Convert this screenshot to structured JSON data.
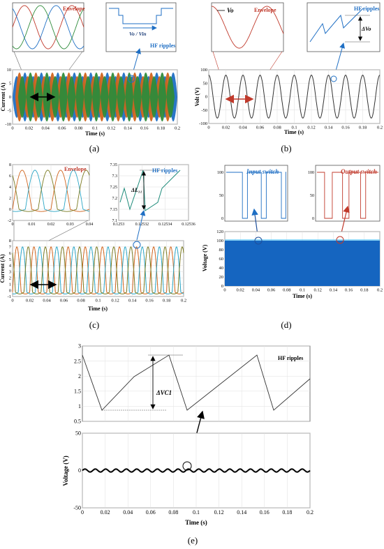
{
  "chart_data": [
    {
      "id": "a",
      "type": "line",
      "caption": "(a)",
      "main": {
        "xlabel": "Time (s)",
        "ylabel": "Current (A)",
        "xlim": [
          0,
          0.2
        ],
        "ylim": [
          -10,
          10
        ],
        "xticks": [
          "0",
          "0.02",
          "0.04",
          "0.06",
          "0.08",
          "0.1",
          "0.12",
          "0.14",
          "0.16",
          "0.18",
          "0.2"
        ],
        "yticks": [
          "10",
          "5",
          "0",
          "-5",
          "-10"
        ],
        "series": [
          {
            "color": "#1f6fc4",
            "shape": "modulated-carrier",
            "envelope_period_s": 0.02,
            "amplitude": 9
          },
          {
            "color": "#d0641c",
            "shape": "modulated-carrier",
            "envelope_period_s": 0.02,
            "amplitude": 9
          },
          {
            "color": "#2e8b3a",
            "shape": "modulated-carrier",
            "envelope_period_s": 0.02,
            "amplitude": 9
          }
        ],
        "period_marker": [
          0.02,
          0.05
        ]
      },
      "insets": [
        {
          "label": "Envelope",
          "label_color": "#c0392b"
        },
        {
          "label": "HF ripples",
          "label_color": "#1f6fc4",
          "annotation": "Vo / Vin"
        }
      ]
    },
    {
      "id": "b",
      "type": "line",
      "caption": "(b)",
      "main": {
        "xlabel": "Time (s)",
        "ylabel": "Volt (V)",
        "xlim": [
          0,
          0.2
        ],
        "ylim": [
          -100,
          100
        ],
        "xticks": [
          "0",
          "0.02",
          "0.04",
          "0.06",
          "0.08",
          "0.1",
          "0.12",
          "0.14",
          "0.16",
          "0.18",
          "0.2"
        ],
        "yticks": [
          "100",
          "50",
          "0",
          "-50",
          "-100"
        ],
        "series": [
          {
            "color": "#333333",
            "shape": "sine",
            "amplitude": 80,
            "period_s": 0.02
          }
        ],
        "period_marker": [
          0.02,
          0.05
        ]
      },
      "insets": [
        {
          "label": "Envelope",
          "label_color": "#c0392b",
          "annotation": "Vo"
        },
        {
          "label": "HF ripples",
          "label_color": "#1f6fc4",
          "annotation": "ΔVo"
        }
      ]
    },
    {
      "id": "c",
      "type": "line",
      "caption": "(c)",
      "main": {
        "xlabel": "Time (s)",
        "ylabel": "Current (A)",
        "xlim": [
          0,
          0.2
        ],
        "ylim": [
          -1,
          8
        ],
        "xticks": [
          "0",
          "0.02",
          "0.04",
          "0.06",
          "0.08",
          "0.1",
          "0.12",
          "0.14",
          "0.16",
          "0.18",
          "0.2"
        ],
        "yticks": [
          "8",
          "7",
          "6",
          "5",
          "4",
          "3",
          "2",
          "1",
          "0",
          "-1"
        ],
        "series": [
          {
            "color": "#d0641c",
            "shape": "rectified-sine",
            "peak": 7.3,
            "offset": -0.3
          },
          {
            "color": "#2aa5c5",
            "shape": "rectified-sine",
            "peak": 7.3,
            "offset": -0.3
          },
          {
            "color": "#7a7a20",
            "shape": "rectified-sine",
            "peak": 7.3,
            "offset": -0.3
          }
        ],
        "period_marker": [
          0.02,
          0.05
        ]
      },
      "insets": [
        {
          "label": "Envelope",
          "label_color": "#c0392b",
          "xticks": [
            "0",
            "0.01",
            "0.02",
            "0.03",
            "0.04"
          ],
          "yticks": [
            "8",
            "6",
            "4",
            "2",
            "0",
            "-2"
          ],
          "ylim": [
            -2,
            8
          ]
        },
        {
          "label": "HF ripples",
          "label_color": "#1f6fc4",
          "annotation": "ΔL₁₁",
          "xticks": [
            "0.1253",
            "0.12532",
            "0.12534",
            "0.12536"
          ],
          "yticks": [
            "7.35",
            "7.3",
            "7.25",
            "7.2",
            "7.15",
            "7.1"
          ],
          "ylim": [
            7.1,
            7.35
          ]
        }
      ]
    },
    {
      "id": "d",
      "type": "line",
      "caption": "(d)",
      "main": {
        "xlabel": "Time (s)",
        "ylabel": "Voltage (V)",
        "xlim": [
          0,
          0.2
        ],
        "ylim": [
          0,
          120
        ],
        "xticks": [
          "0",
          "0.02",
          "0.04",
          "0.06",
          "0.08",
          "0.1",
          "0.12",
          "0.14",
          "0.16",
          "0.18",
          "0.2"
        ],
        "yticks": [
          "120",
          "100",
          "80",
          "60",
          "40",
          "20",
          "0"
        ],
        "series": [
          {
            "color": "#1565c0",
            "shape": "pwm-band",
            "high": 100,
            "low": 0
          }
        ]
      },
      "insets": [
        {
          "label": "Input switch",
          "label_color": "#1f6fc4",
          "yticks": [
            "100",
            "50",
            "0"
          ]
        },
        {
          "label": "Output switch",
          "label_color": "#c0392b",
          "yticks": [
            "100",
            "50",
            "0"
          ]
        }
      ]
    },
    {
      "id": "e",
      "type": "line",
      "caption": "(e)",
      "main": {
        "xlabel": "Time (s)",
        "ylabel": "Voltage (V)",
        "xlim": [
          0,
          0.2
        ],
        "ylim": [
          -50,
          50
        ],
        "xticks": [
          "0",
          "0.02",
          "0.04",
          "0.06",
          "0.08",
          "0.1",
          "0.12",
          "0.14",
          "0.16",
          "0.18",
          "0.2"
        ],
        "yticks": [
          "50",
          "0",
          "-50"
        ],
        "series": [
          {
            "color": "#000000",
            "shape": "small-ripple",
            "amplitude": 2
          }
        ]
      },
      "insets": [
        {
          "label": "HF ripples",
          "label_color": "#000000",
          "annotation": "ΔVC1",
          "yticks": [
            "3",
            "2.5",
            "2",
            "1.5",
            "1",
            "0.5"
          ],
          "ylim": [
            0.5,
            3.1
          ]
        }
      ]
    }
  ]
}
